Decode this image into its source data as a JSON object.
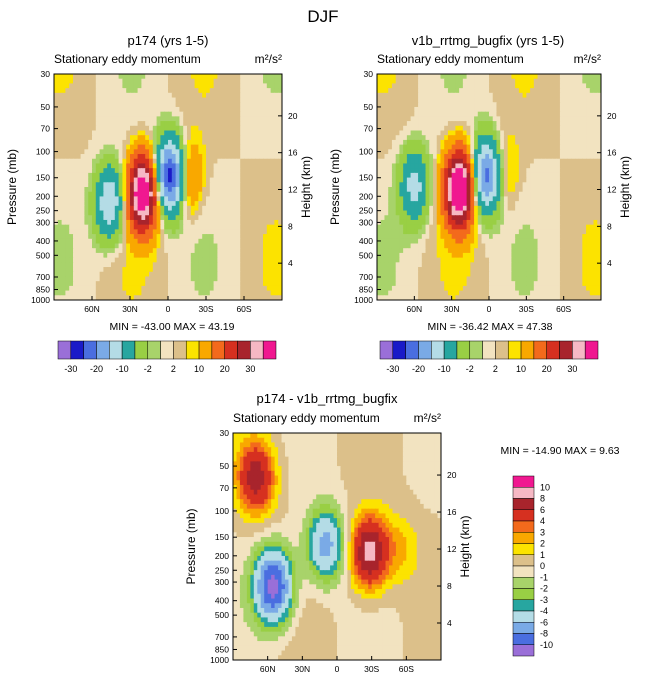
{
  "figure_title": "DJF",
  "units": "m²/s²",
  "palette": {
    "p_neg30": "#9a6fd8",
    "p_neg25": "#1a1ac8",
    "p_neg20": "#4a6ee0",
    "p_neg15": "#7aaae6",
    "p_neg10": "#b4dce6",
    "p_neg5": "#27a6a0",
    "p_neg2": "#99cf44",
    "p_neg1": "#a8d36a",
    "p_0": "#f2e3c0",
    "p_2": "#dcc08a",
    "p_5": "#fce300",
    "p_10": "#f9a800",
    "p_15": "#f36a1c",
    "p_20": "#d63020",
    "p_25": "#a8242c",
    "p_30": "#f6b8c4",
    "p_top": "#f01890"
  },
  "chart_data": [
    {
      "type": "contour",
      "title": "p174 (yrs 1-5)",
      "left_label": "Stationary eddy momentum",
      "right_label": "m²/s²",
      "xlabel": "",
      "ylabel": "Pressure (mb)",
      "y2label": "Height (km)",
      "x_ticks": [
        "60N",
        "30N",
        "0",
        "30S",
        "60S"
      ],
      "x_range": [
        90,
        -90
      ],
      "y_ticks": [
        "30",
        "50",
        "70",
        "100",
        "150",
        "200",
        "250",
        "300",
        "400",
        "500",
        "700",
        "850",
        "1000"
      ],
      "y2_ticks": [
        "20",
        "16",
        "12",
        "8",
        "4"
      ],
      "min": -43.0,
      "max": 43.19,
      "stats_text": "MIN = -43.00   MAX =  43.19",
      "colorbar": {
        "orientation": "horizontal",
        "labels": [
          "-30",
          "-20",
          "-10",
          "-2",
          "2",
          "10",
          "20",
          "30"
        ],
        "levels": [
          -30,
          -25,
          -20,
          -15,
          -10,
          -5,
          -2,
          -1,
          0,
          1,
          2,
          5,
          10,
          15,
          20,
          25,
          30
        ]
      },
      "features": [
        {
          "lat": 46,
          "p": 220,
          "value": -15
        },
        {
          "lat": 20,
          "p": 190,
          "value": 32
        },
        {
          "lat": -2,
          "p": 145,
          "value": -28
        },
        {
          "lat": -15,
          "p": 150,
          "value": 8
        }
      ]
    },
    {
      "type": "contour",
      "title": "v1b_rrtmg_bugfix (yrs 1-5)",
      "left_label": "Stationary eddy momentum",
      "right_label": "m²/s²",
      "xlabel": "",
      "ylabel": "Pressure (mb)",
      "y2label": "Height (km)",
      "x_ticks": [
        "60N",
        "30N",
        "0",
        "30S",
        "60S"
      ],
      "x_range": [
        90,
        -90
      ],
      "y_ticks": [
        "30",
        "50",
        "70",
        "100",
        "150",
        "200",
        "250",
        "300",
        "400",
        "500",
        "700",
        "850",
        "1000"
      ],
      "y2_ticks": [
        "20",
        "16",
        "12",
        "8",
        "4"
      ],
      "min": -36.42,
      "max": 47.38,
      "stats_text": "MIN = -36.42   MAX =  47.38",
      "colorbar": {
        "orientation": "horizontal",
        "labels": [
          "-30",
          "-20",
          "-10",
          "-2",
          "2",
          "10",
          "20",
          "30"
        ],
        "levels": [
          -30,
          -25,
          -20,
          -15,
          -10,
          -5,
          -2,
          -1,
          0,
          1,
          2,
          5,
          10,
          15,
          20,
          25,
          30
        ]
      },
      "features": [
        {
          "lat": 60,
          "p": 170,
          "value": -12
        },
        {
          "lat": 24,
          "p": 180,
          "value": 35
        },
        {
          "lat": 2,
          "p": 145,
          "value": -22
        },
        {
          "lat": -12,
          "p": 140,
          "value": 4
        }
      ]
    },
    {
      "type": "contour",
      "title": "p174 - v1b_rrtmg_bugfix",
      "left_label": "Stationary eddy momentum",
      "right_label": "m²/s²",
      "xlabel": "",
      "ylabel": "Pressure (mb)",
      "y2label": "Height (km)",
      "x_ticks": [
        "60N",
        "30N",
        "0",
        "30S",
        "60S"
      ],
      "x_range": [
        90,
        -90
      ],
      "y_ticks": [
        "30",
        "50",
        "70",
        "100",
        "150",
        "200",
        "250",
        "300",
        "400",
        "500",
        "700",
        "850",
        "1000"
      ],
      "y2_ticks": [
        "20",
        "16",
        "12",
        "8",
        "4"
      ],
      "min": -14.9,
      "max": 9.63,
      "stats_text": "MIN = -14.90   MAX =    9.63",
      "colorbar": {
        "orientation": "vertical",
        "labels": [
          "10",
          "8",
          "6",
          "4",
          "3",
          "2",
          "1",
          "0",
          "-1",
          "-2",
          "-3",
          "-4",
          "-6",
          "-8",
          "-10"
        ],
        "levels": [
          10,
          8,
          6,
          4,
          3,
          2,
          1,
          0,
          -1,
          -2,
          -3,
          -4,
          -6,
          -8,
          -10
        ]
      },
      "features": [
        {
          "lat": 70,
          "p": 60,
          "value": 7
        },
        {
          "lat": 55,
          "p": 320,
          "value": -11
        },
        {
          "lat": 10,
          "p": 170,
          "value": -7
        },
        {
          "lat": -28,
          "p": 190,
          "value": 9
        },
        {
          "lat": -55,
          "p": 180,
          "value": 2
        }
      ]
    }
  ]
}
